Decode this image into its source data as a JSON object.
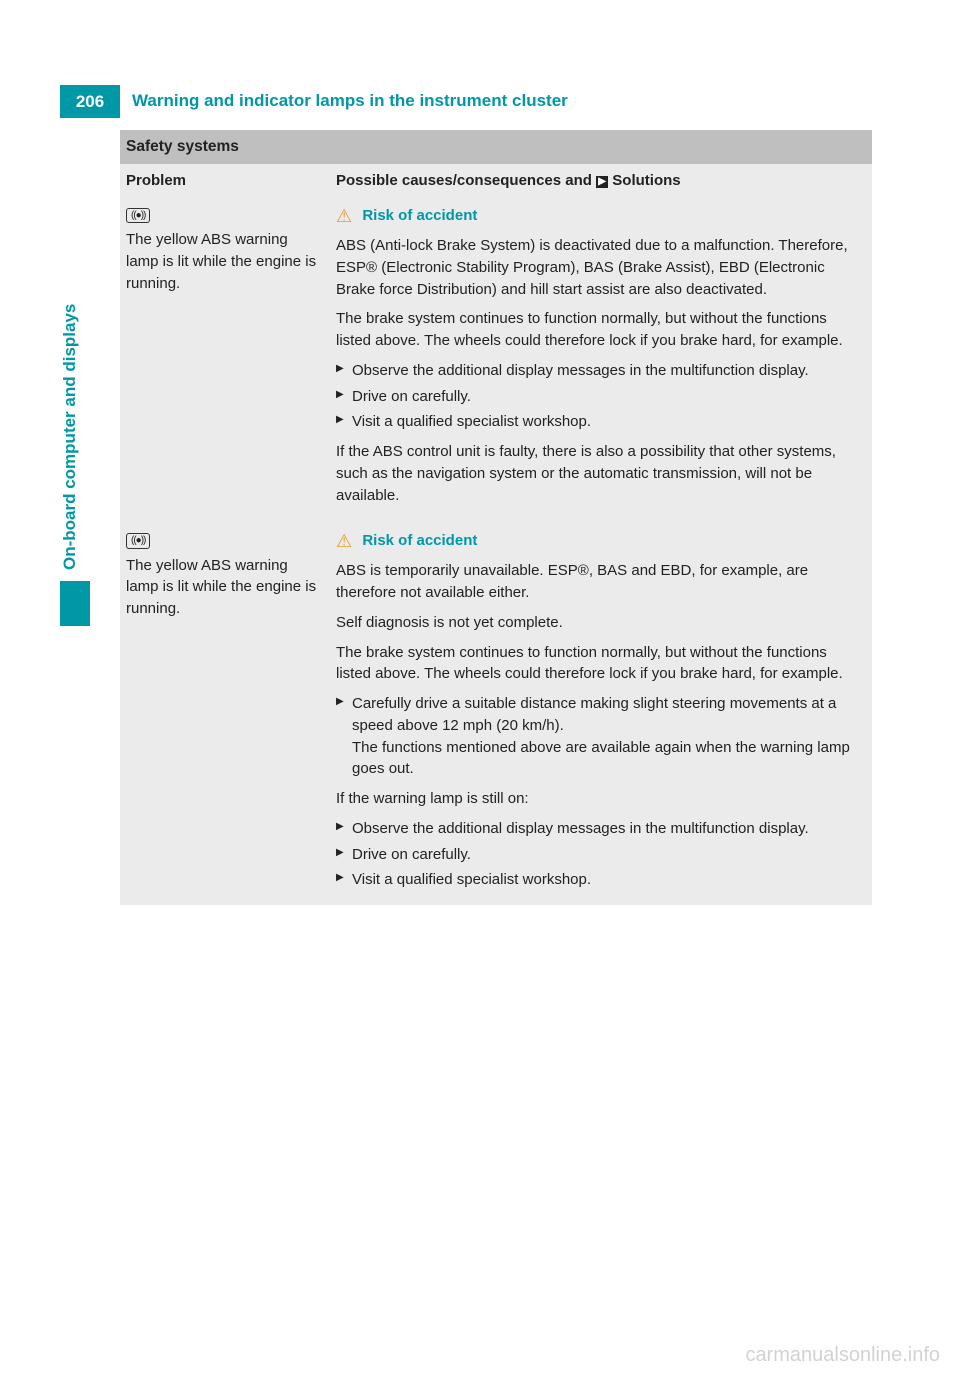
{
  "page_number": "206",
  "page_title": "Warning and indicator lamps in the instrument cluster",
  "side_tab": "On-board computer and displays",
  "section_heading": "Safety systems",
  "columns": {
    "problem": "Problem",
    "solutions_prefix": "Possible causes/consequences and ",
    "solutions_suffix": " Solutions"
  },
  "risk_label": "Risk of accident",
  "rows": [
    {
      "problem_text": "The yellow ABS warning lamp is lit while the engine is running.",
      "cause_paragraphs": [
        "ABS (Anti-lock Brake System) is deactivated due to a malfunction. Therefore, ESP® (Electronic Stability Program), BAS (Brake Assist), EBD (Electronic Brake force Distribution) and hill start assist are also deactivated.",
        "The brake system continues to function normally, but without the functions listed above. The wheels could therefore lock if you brake hard, for example."
      ],
      "actions": [
        "Observe the additional display messages in the multifunction display.",
        "Drive on carefully.",
        "Visit a qualified specialist workshop."
      ],
      "post_note": "If the ABS control unit is faulty, there is also a possibility that other systems, such as the navigation system or the automatic transmission, will not be available."
    },
    {
      "problem_text": "The yellow ABS warning lamp is lit while the engine is running.",
      "cause_paragraphs": [
        "ABS is temporarily unavailable. ESP®, BAS and EBD, for example, are therefore not available either.",
        "Self diagnosis is not yet complete.",
        "The brake system continues to function normally, but without the functions listed above. The wheels could therefore lock if you brake hard, for example."
      ],
      "actions_block1": [
        "Carefully drive a suitable distance making slight steering movements at a speed above 12 mph (20 km/h).\nThe functions mentioned above are available again when the warning lamp goes out."
      ],
      "mid_note": "If the warning lamp is still on:",
      "actions_block2": [
        "Observe the additional display messages in the multifunction display.",
        "Drive on carefully.",
        "Visit a qualified specialist workshop."
      ]
    }
  ],
  "watermark": "carmanualsonline.info",
  "colors": {
    "teal": "#0097a7",
    "grey_header": "#bfbfbf",
    "grey_cell": "#ebebeb",
    "triangle": "#e39b2d"
  }
}
